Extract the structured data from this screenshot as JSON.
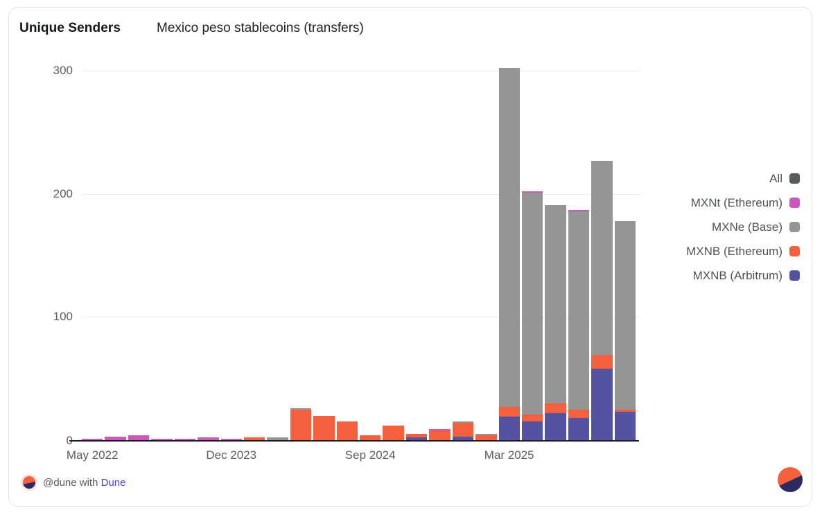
{
  "card": {
    "title": "Unique Senders",
    "subtitle": "Mexico peso stablecoins (transfers)"
  },
  "footer": {
    "attribution_prefix": "@dune with",
    "attribution_brand": "Dune"
  },
  "colors": {
    "accent_orange": "#f4603e",
    "accent_navy": "#2b2a63",
    "brand_link": "#4b3cd6",
    "axis_line": "#1c1d1f",
    "gridline": "#ecedf0",
    "tick_text": "#5d5e60"
  },
  "chart_data": {
    "type": "bar",
    "stacked": true,
    "title": "Unique Senders",
    "subtitle": "Mexico peso stablecoins (transfers)",
    "xlabel": "",
    "ylabel": "",
    "ylim": [
      0,
      310
    ],
    "yticks": [
      0,
      100,
      200,
      300
    ],
    "grid": true,
    "legend_position": "right",
    "xtick_labels": [
      {
        "index": 0,
        "label": "May 2022"
      },
      {
        "index": 6,
        "label": "Dec 2023"
      },
      {
        "index": 12,
        "label": "Sep 2024"
      },
      {
        "index": 18,
        "label": "Mar 2025"
      }
    ],
    "legend": [
      {
        "name": "All",
        "color": "#58595b"
      },
      {
        "name": "MXNt (Ethereum)",
        "color": "#cb58bc"
      },
      {
        "name": "MXNe (Base)",
        "color": "#959596"
      },
      {
        "name": "MXNB (Ethereum)",
        "color": "#f4603e"
      },
      {
        "name": "MXNB (Arbitrum)",
        "color": "#5452a1"
      }
    ],
    "series": [
      {
        "name": "MXNB (Arbitrum)",
        "color": "#5452a1",
        "values": [
          0,
          0,
          0,
          0,
          0,
          0,
          0,
          0,
          0,
          0,
          0,
          0,
          0,
          0,
          2,
          0,
          3,
          0,
          19,
          15,
          22,
          18,
          58,
          23
        ]
      },
      {
        "name": "MXNB (Ethereum)",
        "color": "#f4603e",
        "values": [
          0,
          0,
          0,
          0,
          0,
          0,
          0,
          2,
          0,
          25,
          20,
          15,
          4,
          12,
          3,
          8,
          11,
          4,
          8,
          6,
          8,
          7,
          11,
          2
        ]
      },
      {
        "name": "MXNe (Base)",
        "color": "#959596",
        "values": [
          0,
          0,
          0,
          0,
          0,
          0,
          0,
          0,
          2,
          1,
          0,
          0,
          0,
          0,
          0,
          0,
          1,
          1,
          275,
          180,
          161,
          161,
          158,
          153
        ]
      },
      {
        "name": "MXNt (Ethereum)",
        "color": "#cb58bc",
        "values": [
          1,
          3,
          4,
          1,
          1,
          2,
          1,
          0,
          0,
          0,
          0,
          0,
          0,
          0,
          0,
          1,
          0,
          0,
          0,
          1,
          0,
          1,
          0,
          0
        ]
      }
    ],
    "bar_totals": [
      1,
      3,
      4,
      1,
      1,
      2,
      1,
      2,
      2,
      26,
      20,
      15,
      4,
      12,
      5,
      9,
      15,
      5,
      302,
      202,
      191,
      187,
      227,
      178
    ]
  }
}
